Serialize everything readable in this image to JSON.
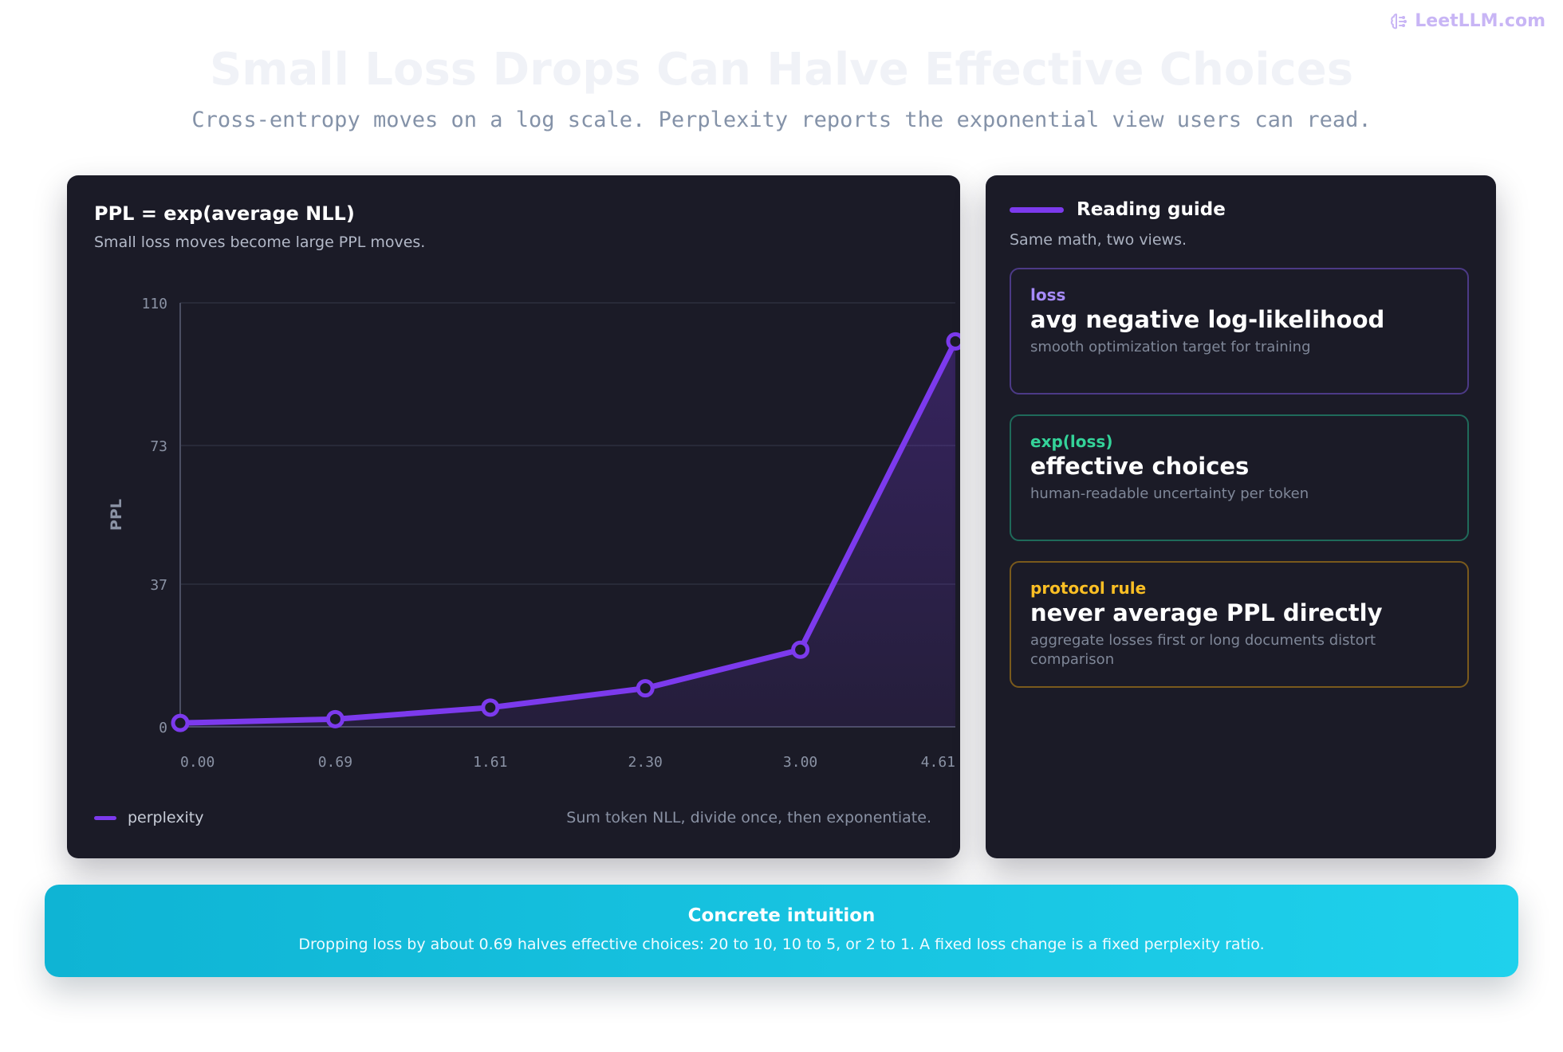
{
  "brand": {
    "name": "LeetLLM.com",
    "icon": "brain-icon",
    "color": "#c8b5f5"
  },
  "header": {
    "title": "Small Loss Drops Can Halve Effective Choices",
    "subtitle": "Cross-entropy moves on a log scale. Perplexity reports the exponential view users can read."
  },
  "chart_panel": {
    "title": "PPL = exp(average NLL)",
    "subtitle": "Small loss moves become large PPL moves.",
    "legend_label": "perplexity",
    "note": "Sum token NLL, divide once, then exponentiate."
  },
  "chart_data": {
    "type": "area",
    "title": "PPL = exp(average NLL)",
    "xlabel": "",
    "ylabel": "PPL",
    "x": [
      "0.00",
      "0.69",
      "1.61",
      "2.30",
      "3.00",
      "4.61"
    ],
    "y_ticks": [
      0,
      37,
      73,
      110
    ],
    "ylim": [
      0,
      110
    ],
    "series": [
      {
        "name": "perplexity",
        "values": [
          1,
          2,
          5,
          10,
          20,
          100
        ],
        "color": "#7c3aed"
      }
    ],
    "grid": true,
    "legend": "bottom-left"
  },
  "guide": {
    "title": "Reading guide",
    "subtitle": "Same math, two views.",
    "cards": [
      {
        "tag": "loss",
        "heading": "avg negative log-likelihood",
        "desc": "smooth optimization target for training",
        "color": "#a78bfa",
        "border": "#4c3a86"
      },
      {
        "tag": "exp(loss)",
        "heading": "effective choices",
        "desc": "human-readable uncertainty per token",
        "color": "#34d399",
        "border": "#1f6a5a"
      },
      {
        "tag": "protocol rule",
        "heading": "never average PPL directly",
        "desc": "aggregate losses first or long documents distort comparison",
        "color": "#fbbf24",
        "border": "#7a5a1c"
      }
    ]
  },
  "banner": {
    "title": "Concrete intuition",
    "text": "Dropping loss by about 0.69 halves effective choices: 20 to 10, 10 to 5, or 2 to 1. A fixed loss change is a fixed perplexity ratio."
  }
}
